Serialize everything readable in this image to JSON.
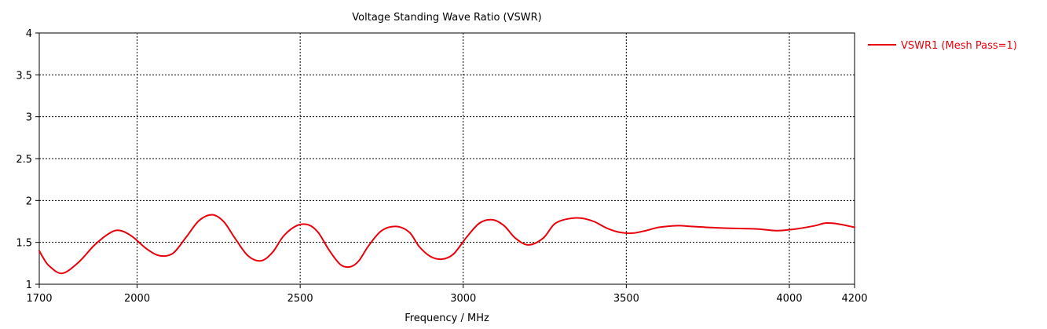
{
  "chart_data": {
    "type": "line",
    "title": "Voltage Standing Wave Ratio (VSWR)",
    "xlabel": "Frequency / MHz",
    "ylabel": "",
    "xlim": [
      1700,
      4200
    ],
    "ylim": [
      1,
      4
    ],
    "x_ticks": [
      "1700",
      "2000",
      "2500",
      "3000",
      "3500",
      "4000",
      "4200"
    ],
    "y_ticks": [
      "4",
      "3.5",
      "3",
      "2.5",
      "2",
      "1.5",
      "1"
    ],
    "grid": true,
    "legend_position": "right",
    "series": [
      {
        "name": "VSWR1 (Mesh Pass=1)",
        "color": "#e8000b",
        "x": [
          1700,
          1710,
          1730,
          1770,
          1820,
          1870,
          1920,
          1950,
          1985,
          2030,
          2070,
          2110,
          2150,
          2190,
          2230,
          2265,
          2300,
          2340,
          2380,
          2415,
          2450,
          2490,
          2525,
          2555,
          2590,
          2625,
          2655,
          2680,
          2710,
          2750,
          2795,
          2835,
          2865,
          2900,
          2935,
          2970,
          3010,
          3050,
          3090,
          3125,
          3160,
          3200,
          3245,
          3280,
          3320,
          3360,
          3400,
          3440,
          3480,
          3520,
          3560,
          3600,
          3660,
          3700,
          3800,
          3900,
          3960,
          4020,
          4080,
          4110,
          4150,
          4200
        ],
        "values": [
          1.4,
          1.33,
          1.22,
          1.13,
          1.26,
          1.47,
          1.62,
          1.64,
          1.57,
          1.42,
          1.34,
          1.37,
          1.56,
          1.76,
          1.83,
          1.75,
          1.55,
          1.34,
          1.28,
          1.38,
          1.58,
          1.7,
          1.71,
          1.62,
          1.4,
          1.23,
          1.21,
          1.28,
          1.46,
          1.64,
          1.69,
          1.62,
          1.45,
          1.33,
          1.3,
          1.36,
          1.56,
          1.73,
          1.77,
          1.7,
          1.55,
          1.47,
          1.55,
          1.72,
          1.78,
          1.79,
          1.75,
          1.67,
          1.62,
          1.61,
          1.64,
          1.68,
          1.7,
          1.69,
          1.67,
          1.66,
          1.64,
          1.66,
          1.7,
          1.73,
          1.72,
          1.68
        ]
      }
    ]
  }
}
